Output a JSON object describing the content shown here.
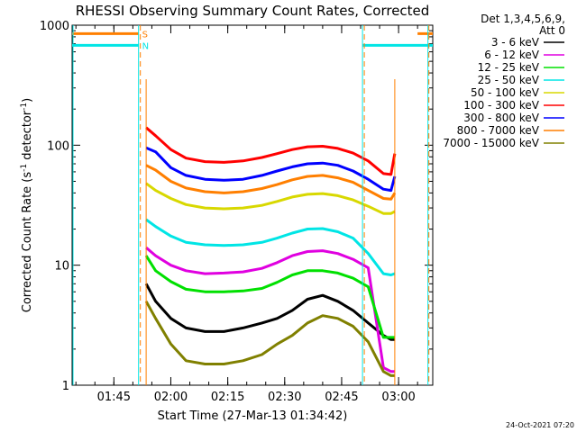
{
  "chart_data": {
    "type": "line",
    "title": "RHESSI Observing Summary Count Rates, Corrected",
    "xlabel": "Start Time (27-Mar-13 01:34:42)",
    "ylabel": "Corrected Count Rate (s",
    "ylabel_sup1": "-1",
    "ylabel_mid": " detector",
    "ylabel_sup2": "-1",
    "ylabel_end": ")",
    "y_scale": "log",
    "ylim": [
      1,
      1000
    ],
    "xlim_minutes_after_0134": [
      0,
      95
    ],
    "x_tick_labels": [
      "01:45",
      "02:00",
      "02:15",
      "02:30",
      "02:45",
      "03:00"
    ],
    "x_tick_minutes": [
      11,
      26,
      41,
      56,
      71,
      86
    ],
    "y_tick_labels": [
      "1",
      "10",
      "100",
      "1000"
    ],
    "y_tick_values": [
      1,
      10,
      100,
      1000
    ],
    "legend_header": [
      "Det 1,3,4,5,6,9,",
      "Att 0"
    ],
    "legend_placement": "right",
    "footer_date": "24-Oct-2021 07:20",
    "flags": [
      {
        "label": "S",
        "color": "#ff7f00",
        "y": 850,
        "segments": [
          [
            0,
            17.5
          ],
          [
            91,
            95
          ]
        ]
      },
      {
        "label": "N",
        "color": "#00e5e5",
        "y": 680,
        "segments": [
          [
            0,
            17.5
          ],
          [
            76.5,
            95
          ]
        ]
      }
    ],
    "saa_markers_minutes": [
      17.5,
      76.5
    ],
    "night_markers_minutes": [
      0,
      93.5
    ],
    "data_gap_lines": {
      "color": "#ff7f00",
      "minutes": [
        19.5,
        85
      ]
    },
    "series": [
      {
        "name": "3 - 6 keV",
        "color": "#000000",
        "x": [
          19.5,
          22,
          26,
          30,
          35,
          40,
          45,
          50,
          54,
          58,
          62,
          66,
          70,
          74,
          78,
          82,
          84,
          85
        ],
        "y": [
          7,
          5,
          3.6,
          3,
          2.8,
          2.8,
          3,
          3.3,
          3.6,
          4.2,
          5.2,
          5.6,
          5,
          4.2,
          3.3,
          2.6,
          2.4,
          2.4
        ]
      },
      {
        "name": "6 - 12 keV",
        "color": "#e000e0",
        "x": [
          19.5,
          22,
          26,
          30,
          35,
          40,
          45,
          50,
          54,
          58,
          62,
          66,
          70,
          74,
          78,
          82,
          84,
          85
        ],
        "y": [
          14,
          12,
          10,
          9,
          8.5,
          8.6,
          8.8,
          9.4,
          10.5,
          12,
          13,
          13.2,
          12.5,
          11.2,
          9.5,
          1.4,
          1.3,
          1.3
        ]
      },
      {
        "name": "12 - 25 keV",
        "color": "#00e000",
        "x": [
          19.5,
          22,
          26,
          30,
          35,
          40,
          45,
          50,
          54,
          58,
          62,
          66,
          70,
          74,
          78,
          82,
          84,
          85
        ],
        "y": [
          12,
          9,
          7.3,
          6.3,
          6,
          6,
          6.1,
          6.4,
          7.2,
          8.3,
          9,
          9,
          8.6,
          7.8,
          6.6,
          2.5,
          2.5,
          2.5
        ]
      },
      {
        "name": "25 - 50 keV",
        "color": "#00e5e5",
        "x": [
          19.5,
          22,
          26,
          30,
          35,
          40,
          45,
          50,
          54,
          58,
          62,
          66,
          70,
          74,
          78,
          82,
          84,
          85
        ],
        "y": [
          24,
          21,
          17.5,
          15.5,
          14.8,
          14.6,
          14.8,
          15.5,
          16.8,
          18.5,
          20,
          20.2,
          19,
          16.8,
          12.5,
          8.5,
          8.3,
          8.5
        ]
      },
      {
        "name": "50 - 100 keV",
        "color": "#d8d800",
        "x": [
          19.5,
          22,
          26,
          30,
          35,
          40,
          45,
          50,
          54,
          58,
          62,
          66,
          70,
          74,
          78,
          82,
          84,
          85
        ],
        "y": [
          48,
          42,
          36,
          32,
          30,
          29.5,
          30,
          31.5,
          34,
          37,
          39,
          39.5,
          38,
          35,
          31,
          27,
          27,
          28
        ]
      },
      {
        "name": "100 - 300 keV",
        "color": "#ff0000",
        "x": [
          19.5,
          22,
          26,
          30,
          35,
          40,
          45,
          50,
          54,
          58,
          62,
          66,
          70,
          74,
          78,
          82,
          84,
          85
        ],
        "y": [
          140,
          120,
          92,
          78,
          73,
          72,
          74,
          79,
          85,
          92,
          97,
          98,
          94,
          86,
          74,
          58,
          57,
          85
        ]
      },
      {
        "name": "300 - 800 keV",
        "color": "#0000ff",
        "x": [
          19.5,
          22,
          26,
          30,
          35,
          40,
          45,
          50,
          54,
          58,
          62,
          66,
          70,
          74,
          78,
          82,
          84,
          85
        ],
        "y": [
          95,
          88,
          65,
          56,
          52,
          51,
          52,
          56,
          61,
          66,
          70,
          71,
          68,
          61,
          52,
          43,
          42,
          55
        ]
      },
      {
        "name": "800 - 7000 keV",
        "color": "#ff7f00",
        "x": [
          19.5,
          22,
          26,
          30,
          35,
          40,
          45,
          50,
          54,
          58,
          62,
          66,
          70,
          74,
          78,
          82,
          84,
          85
        ],
        "y": [
          68,
          62,
          50,
          44,
          41,
          40,
          41,
          43.5,
          47,
          51.5,
          55,
          56,
          53.5,
          49,
          42,
          36,
          35.5,
          40
        ]
      },
      {
        "name": "7000 - 15000 keV",
        "color": "#808000",
        "x": [
          19.5,
          22,
          26,
          30,
          35,
          40,
          45,
          50,
          54,
          58,
          62,
          66,
          70,
          74,
          78,
          82,
          84,
          85
        ],
        "y": [
          5,
          3.6,
          2.2,
          1.6,
          1.5,
          1.5,
          1.6,
          1.8,
          2.2,
          2.6,
          3.3,
          3.8,
          3.6,
          3.1,
          2.3,
          1.3,
          1.2,
          1.2
        ]
      }
    ]
  }
}
